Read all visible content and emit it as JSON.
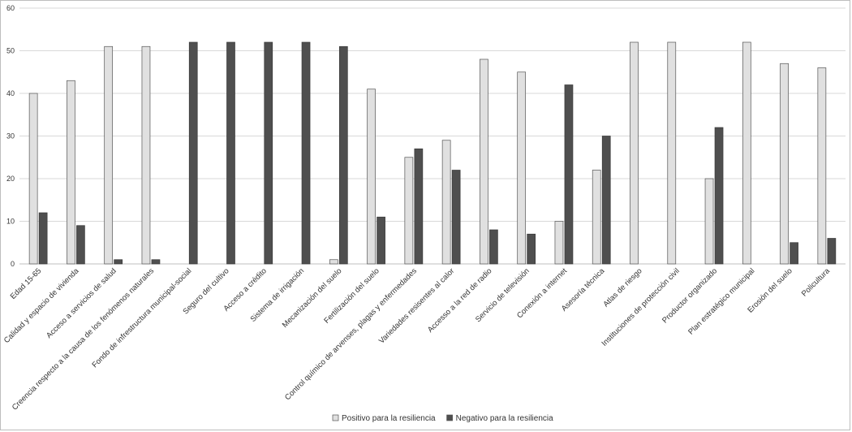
{
  "chart_data": {
    "type": "bar",
    "categories": [
      "Edad 15-65",
      "Calidad y espacio de vivienda",
      "Acceso a servicios de salud",
      "Creencia respecto a la causa de los fenómenos naturales",
      "Fondo de infrestructura municipal-social",
      "Seguro del cultivo",
      "Acceso a crédito",
      "Sistema de irrigación",
      "Mecanización del suelo",
      "Fertilización del suelo",
      "Control químico de arvenses, plagas y enfermedades",
      "Variedades resisentes al calor",
      "Accesso a la red de radio",
      "Servicio de televisión",
      "Conexión a internet",
      "Asesoría técnica",
      "Atlas de riesgo",
      "Instituciones de protección civil",
      "Productor organizado",
      "Plan estratégico municipal",
      "Erosión del suelo",
      "Policultura"
    ],
    "series": [
      {
        "name": "Positivo para la resiliencia",
        "color": "#e0e0e0",
        "values": [
          40,
          43,
          51,
          51,
          0,
          0,
          0,
          0,
          1,
          41,
          25,
          29,
          48,
          45,
          10,
          22,
          52,
          52,
          20,
          52,
          47,
          46
        ]
      },
      {
        "name": "Negativo para la resiliencia",
        "color": "#4f4f4f",
        "values": [
          12,
          9,
          1,
          1,
          52,
          52,
          52,
          52,
          51,
          11,
          27,
          22,
          8,
          7,
          42,
          30,
          0,
          0,
          32,
          0,
          5,
          6
        ]
      }
    ],
    "ylim": [
      0,
      60
    ],
    "yticks": [
      0,
      10,
      20,
      30,
      40,
      50,
      60
    ],
    "grid": true,
    "legend_position": "bottom-center",
    "title": "",
    "xlabel": "",
    "ylabel": ""
  }
}
